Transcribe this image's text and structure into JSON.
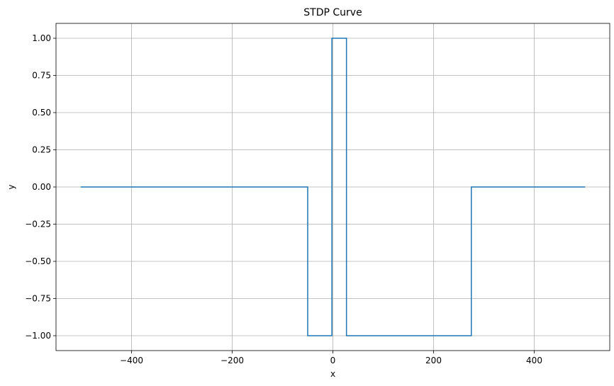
{
  "chart_data": {
    "type": "line",
    "title": "STDP Curve",
    "xlabel": "x",
    "ylabel": "y",
    "xlim": [
      -550,
      550
    ],
    "ylim": [
      -1.1,
      1.1
    ],
    "grid": true,
    "x_ticks": [
      -400,
      -200,
      0,
      200,
      400
    ],
    "x_tick_labels": [
      "−400",
      "−200",
      "0",
      "200",
      "400"
    ],
    "y_ticks": [
      1.0,
      0.75,
      0.5,
      0.25,
      0.0,
      -0.25,
      -0.5,
      -0.75,
      -1.0
    ],
    "y_tick_labels": [
      "1.00",
      "0.75",
      "0.50",
      "0.25",
      "0.00",
      "−0.25",
      "−0.50",
      "−0.75",
      "−1.00"
    ],
    "series": [
      {
        "color": "#1f77b4",
        "drawstyle": "steps",
        "x": [
          -500,
          -50,
          -50,
          -2,
          -2,
          27,
          27,
          275,
          275,
          500
        ],
        "y": [
          0,
          0,
          -1,
          -1,
          1,
          1,
          -1,
          -1,
          0,
          0
        ]
      }
    ]
  }
}
